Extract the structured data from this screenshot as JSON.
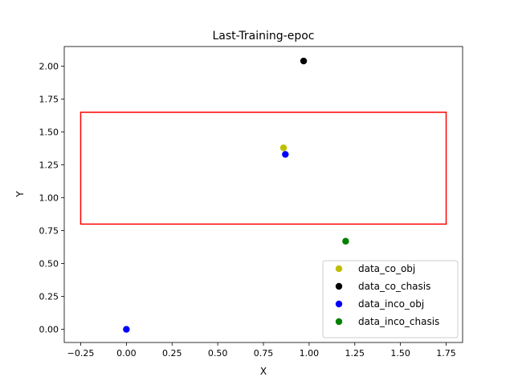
{
  "chart_data": {
    "type": "scatter",
    "title": "Last-Training-epoc",
    "xlabel": "X",
    "ylabel": "Y",
    "xlim": [
      -0.34,
      1.84
    ],
    "ylim": [
      -0.1,
      2.15
    ],
    "xticks": [
      -0.25,
      0.0,
      0.25,
      0.5,
      0.75,
      1.0,
      1.25,
      1.5,
      1.75
    ],
    "xtick_labels": [
      "−0.25",
      "0.00",
      "0.25",
      "0.50",
      "0.75",
      "1.00",
      "1.25",
      "1.50",
      "1.75"
    ],
    "yticks": [
      0.0,
      0.25,
      0.5,
      0.75,
      1.0,
      1.25,
      1.5,
      1.75,
      2.0
    ],
    "ytick_labels": [
      "0.00",
      "0.25",
      "0.50",
      "0.75",
      "1.00",
      "1.25",
      "1.50",
      "1.75",
      "2.00"
    ],
    "grid": false,
    "legend_position": "lower-right",
    "series": [
      {
        "name": "data_co_obj",
        "color": "#bfbf00",
        "points": [
          [
            0.86,
            1.38
          ]
        ]
      },
      {
        "name": "data_co_chasis",
        "color": "#000000",
        "points": [
          [
            0.97,
            2.04
          ]
        ]
      },
      {
        "name": "data_inco_obj",
        "color": "#0000ff",
        "points": [
          [
            0.0,
            0.0
          ],
          [
            0.87,
            1.33
          ]
        ]
      },
      {
        "name": "data_inco_chasis",
        "color": "#008000",
        "points": [
          [
            1.2,
            0.67
          ]
        ]
      }
    ],
    "rectangle": {
      "x0": -0.25,
      "y0": 0.8,
      "x1": 1.75,
      "y1": 1.65,
      "color": "#ff0000"
    }
  }
}
